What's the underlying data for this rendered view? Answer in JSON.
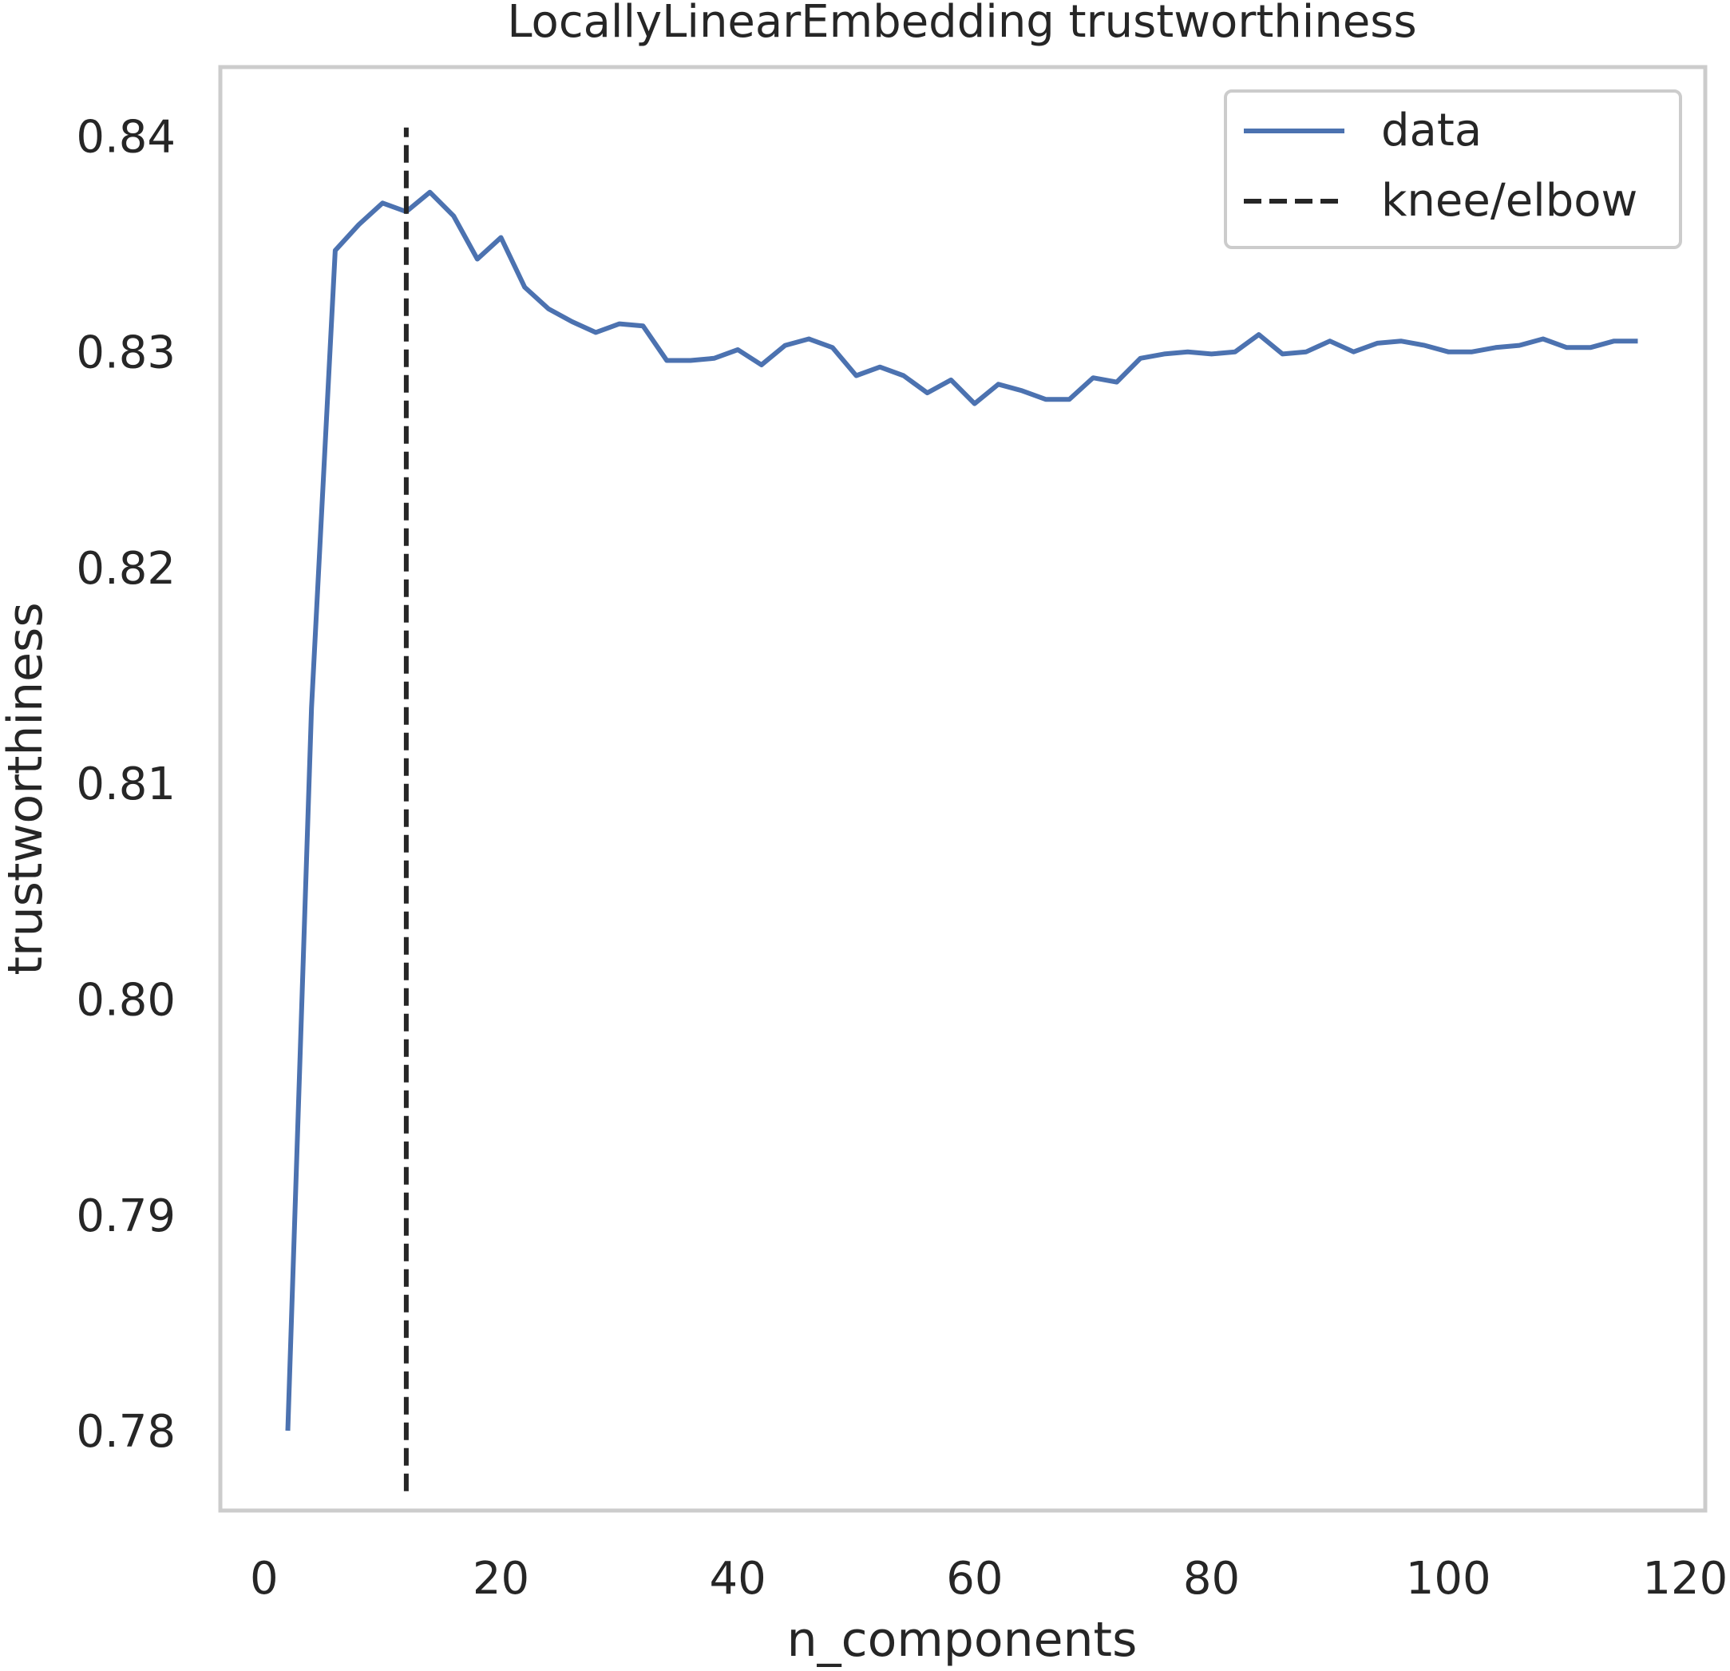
{
  "chart_data": {
    "type": "line",
    "title": "LocallyLinearEmbedding trustworthiness",
    "xlabel": "n_components",
    "ylabel": "trustworthiness",
    "xlim": [
      -3.7,
      121.7
    ],
    "ylim": [
      0.7763,
      0.8432
    ],
    "xticks": [
      0,
      20,
      40,
      60,
      80,
      100,
      120
    ],
    "xtick_labels": [
      "0",
      "20",
      "40",
      "60",
      "80",
      "100",
      "120"
    ],
    "yticks": [
      0.78,
      0.79,
      0.8,
      0.81,
      0.82,
      0.83,
      0.84
    ],
    "ytick_labels": [
      "0.78",
      "0.79",
      "0.80",
      "0.81",
      "0.82",
      "0.83",
      "0.84"
    ],
    "grid": false,
    "legend_position": "top-right",
    "series": [
      {
        "name": "data",
        "color": "#4c72b0",
        "x": [
          2,
          4,
          6,
          8,
          10,
          12,
          14,
          16,
          18,
          20,
          22,
          24,
          26,
          28,
          30,
          32,
          34,
          36,
          38,
          40,
          42,
          44,
          46,
          48,
          50,
          52,
          54,
          56,
          58,
          60,
          62,
          64,
          66,
          68,
          70,
          72,
          74,
          76,
          78,
          80,
          82,
          84,
          86,
          88,
          90,
          92,
          94,
          96,
          98,
          100,
          102,
          104,
          106,
          108,
          110,
          112,
          114,
          116
        ],
        "y": [
          0.78,
          0.8135,
          0.8347,
          0.8359,
          0.8369,
          0.8365,
          0.8374,
          0.8363,
          0.8343,
          0.8353,
          0.833,
          0.832,
          0.8314,
          0.8309,
          0.8313,
          0.8312,
          0.8296,
          0.8296,
          0.8297,
          0.8301,
          0.8294,
          0.8303,
          0.8306,
          0.8302,
          0.8289,
          0.8293,
          0.8289,
          0.8281,
          0.8287,
          0.8276,
          0.8285,
          0.8282,
          0.8278,
          0.8278,
          0.8288,
          0.8286,
          0.8297,
          0.8299,
          0.83,
          0.8299,
          0.83,
          0.8308,
          0.8299,
          0.83,
          0.8305,
          0.83,
          0.8304,
          0.8305,
          0.8303,
          0.83,
          0.83,
          0.8302,
          0.8303,
          0.8306,
          0.8302,
          0.8302,
          0.8305,
          0.8305
        ]
      },
      {
        "name": "knee/elbow",
        "color": "#262626",
        "style": "dashed",
        "x": [
          12,
          12
        ],
        "y": [
          0.7772,
          0.8404
        ]
      }
    ]
  }
}
